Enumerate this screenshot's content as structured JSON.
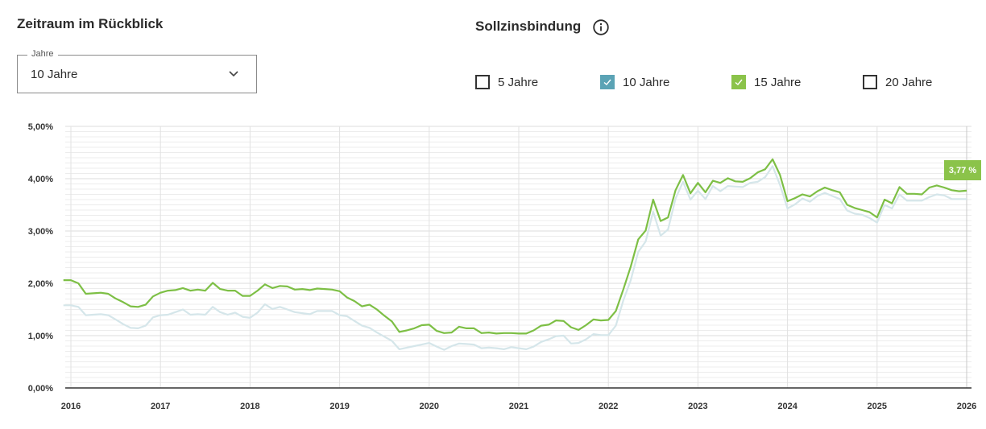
{
  "filters": {
    "period_title": "Zeitraum im Rückblick",
    "period_dropdown": {
      "legend": "Jahre",
      "value": "10 Jahre",
      "icon": "chevron-down-icon"
    },
    "binding_title": "Sollzinsbindung",
    "info_icon": "info-circle-icon",
    "checkboxes": [
      {
        "label": "5 Jahre",
        "checked": false,
        "color": "#333333"
      },
      {
        "label": "10 Jahre",
        "checked": true,
        "color": "#5ba3b5"
      },
      {
        "label": "15 Jahre",
        "checked": true,
        "color": "#8bc34a"
      },
      {
        "label": "20 Jahre",
        "checked": false,
        "color": "#333333"
      }
    ]
  },
  "chart_data": {
    "type": "line",
    "ylim": [
      0,
      5
    ],
    "yticks": [
      "0,00%",
      "1,00%",
      "2,00%",
      "3,00%",
      "4,00%",
      "5,00%"
    ],
    "xticks": [
      "2016",
      "2017",
      "2018",
      "2019",
      "2020",
      "2021",
      "2022",
      "2023",
      "2024",
      "2025",
      "2026"
    ],
    "x_start": "2015-12",
    "x_step": "month",
    "grid": true,
    "current_value_label": "3,77 %",
    "series": [
      {
        "key": "10 Jahre",
        "color": "#d5e6ea",
        "values": [
          1.58,
          1.58,
          1.55,
          1.39,
          1.4,
          1.41,
          1.39,
          1.31,
          1.22,
          1.15,
          1.14,
          1.19,
          1.35,
          1.39,
          1.4,
          1.45,
          1.5,
          1.4,
          1.41,
          1.4,
          1.55,
          1.45,
          1.4,
          1.44,
          1.36,
          1.34,
          1.44,
          1.6,
          1.51,
          1.55,
          1.5,
          1.45,
          1.43,
          1.41,
          1.47,
          1.47,
          1.47,
          1.39,
          1.37,
          1.28,
          1.19,
          1.15,
          1.06,
          0.98,
          0.9,
          0.74,
          0.77,
          0.8,
          0.83,
          0.86,
          0.79,
          0.73,
          0.8,
          0.85,
          0.84,
          0.83,
          0.76,
          0.77,
          0.76,
          0.74,
          0.78,
          0.76,
          0.74,
          0.79,
          0.88,
          0.93,
          0.99,
          1.0,
          0.85,
          0.86,
          0.93,
          1.03,
          1.01,
          1.01,
          1.19,
          1.67,
          2.06,
          2.6,
          2.8,
          3.37,
          2.91,
          3.03,
          3.62,
          3.94,
          3.6,
          3.77,
          3.61,
          3.86,
          3.76,
          3.86,
          3.85,
          3.84,
          3.92,
          3.94,
          4.03,
          4.24,
          3.88,
          3.43,
          3.51,
          3.62,
          3.56,
          3.67,
          3.73,
          3.67,
          3.61,
          3.39,
          3.33,
          3.31,
          3.25,
          3.16,
          3.5,
          3.43,
          3.7,
          3.58,
          3.58,
          3.58,
          3.65,
          3.7,
          3.68,
          3.61,
          3.61,
          3.61
        ]
      },
      {
        "key": "15 Jahre",
        "color": "#7dbf45",
        "values": [
          2.06,
          2.06,
          2.0,
          1.8,
          1.81,
          1.82,
          1.8,
          1.71,
          1.64,
          1.56,
          1.55,
          1.59,
          1.75,
          1.82,
          1.86,
          1.87,
          1.91,
          1.86,
          1.88,
          1.86,
          2.01,
          1.89,
          1.86,
          1.86,
          1.76,
          1.76,
          1.86,
          1.98,
          1.91,
          1.95,
          1.94,
          1.88,
          1.89,
          1.87,
          1.9,
          1.89,
          1.88,
          1.85,
          1.73,
          1.66,
          1.56,
          1.59,
          1.5,
          1.38,
          1.27,
          1.07,
          1.1,
          1.14,
          1.2,
          1.21,
          1.09,
          1.05,
          1.06,
          1.17,
          1.14,
          1.14,
          1.05,
          1.06,
          1.04,
          1.05,
          1.05,
          1.04,
          1.04,
          1.1,
          1.19,
          1.21,
          1.29,
          1.28,
          1.16,
          1.11,
          1.2,
          1.31,
          1.29,
          1.3,
          1.47,
          1.88,
          2.32,
          2.84,
          3.01,
          3.6,
          3.19,
          3.26,
          3.78,
          4.07,
          3.72,
          3.92,
          3.74,
          3.96,
          3.92,
          4.01,
          3.95,
          3.94,
          4.01,
          4.12,
          4.18,
          4.37,
          4.07,
          3.57,
          3.63,
          3.7,
          3.66,
          3.76,
          3.83,
          3.78,
          3.74,
          3.5,
          3.44,
          3.4,
          3.36,
          3.26,
          3.6,
          3.53,
          3.84,
          3.71,
          3.71,
          3.7,
          3.83,
          3.87,
          3.83,
          3.78,
          3.76,
          3.77
        ]
      }
    ]
  }
}
